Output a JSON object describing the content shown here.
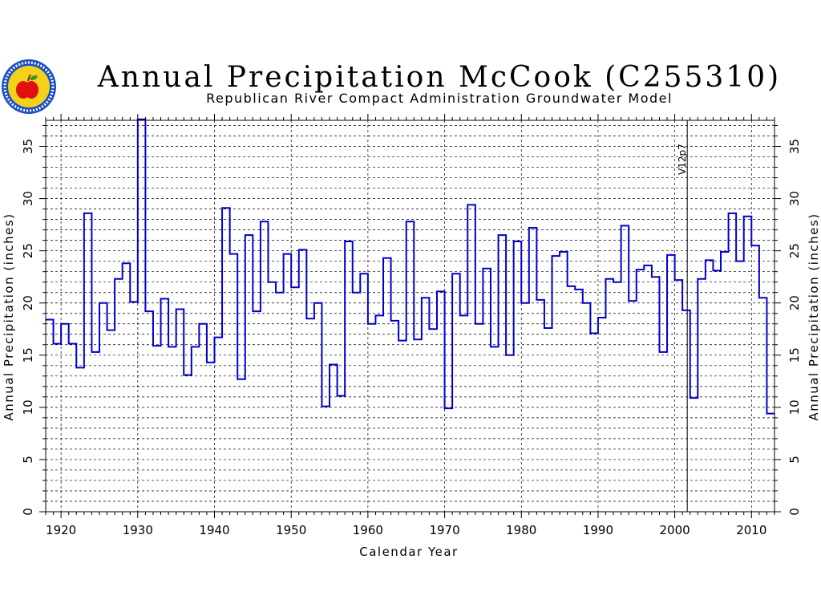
{
  "chart_data": {
    "type": "line",
    "step": true,
    "title": "Annual Precipitation McCook (C255310)",
    "subtitle": "Republican River Compact Administration Groundwater Model",
    "xlabel": "Calendar Year",
    "ylabel": "Annual Precipitation (inches)",
    "ylabel_right": "Annual Precipitation (inches)",
    "xlim": [
      1918,
      2013
    ],
    "ylim": [
      0,
      37.5
    ],
    "x_ticks": [
      1920,
      1930,
      1940,
      1950,
      1960,
      1970,
      1980,
      1990,
      2000,
      2010
    ],
    "y_ticks": [
      0,
      5,
      10,
      15,
      20,
      25,
      30,
      35
    ],
    "grid": true,
    "line_color": "#0000cc",
    "annotation": {
      "x": 2001,
      "label": "V12p7"
    },
    "x": [
      1918,
      1919,
      1920,
      1921,
      1922,
      1923,
      1924,
      1925,
      1926,
      1927,
      1928,
      1929,
      1930,
      1931,
      1932,
      1933,
      1934,
      1935,
      1936,
      1937,
      1938,
      1939,
      1940,
      1941,
      1942,
      1943,
      1944,
      1945,
      1946,
      1947,
      1948,
      1949,
      1950,
      1951,
      1952,
      1953,
      1954,
      1955,
      1956,
      1957,
      1958,
      1959,
      1960,
      1961,
      1962,
      1963,
      1964,
      1965,
      1966,
      1967,
      1968,
      1969,
      1970,
      1971,
      1972,
      1973,
      1974,
      1975,
      1976,
      1977,
      1978,
      1979,
      1980,
      1981,
      1982,
      1983,
      1984,
      1985,
      1986,
      1987,
      1988,
      1989,
      1990,
      1991,
      1992,
      1993,
      1994,
      1995,
      1996,
      1997,
      1998,
      1999,
      2000,
      2001,
      2002,
      2003,
      2004,
      2005,
      2006,
      2007,
      2008,
      2009,
      2010,
      2011,
      2012
    ],
    "values": [
      18.4,
      16.1,
      18.0,
      16.1,
      13.8,
      28.6,
      15.3,
      20.0,
      17.4,
      22.3,
      23.8,
      20.1,
      37.6,
      19.2,
      15.9,
      20.4,
      15.8,
      19.4,
      13.1,
      15.8,
      18.0,
      14.3,
      16.7,
      29.1,
      24.7,
      12.7,
      26.5,
      19.2,
      27.8,
      22.0,
      21.0,
      24.7,
      21.5,
      25.1,
      18.5,
      20.0,
      10.1,
      14.1,
      11.1,
      25.9,
      21.0,
      22.8,
      18.0,
      18.8,
      24.3,
      18.3,
      16.4,
      27.8,
      16.5,
      20.5,
      17.5,
      21.1,
      9.9,
      22.8,
      18.8,
      29.4,
      18.0,
      23.3,
      15.8,
      26.5,
      15.0,
      25.9,
      20.0,
      27.2,
      20.3,
      17.6,
      24.5,
      24.9,
      21.6,
      21.3,
      20.0,
      17.1,
      18.6,
      22.3,
      22.0,
      27.4,
      20.2,
      23.2,
      23.6,
      22.5,
      15.3,
      24.6,
      22.2,
      19.3,
      10.9,
      22.3,
      24.1,
      23.1,
      24.9,
      28.6,
      24.0,
      28.3,
      25.5,
      20.5,
      9.4
    ]
  }
}
